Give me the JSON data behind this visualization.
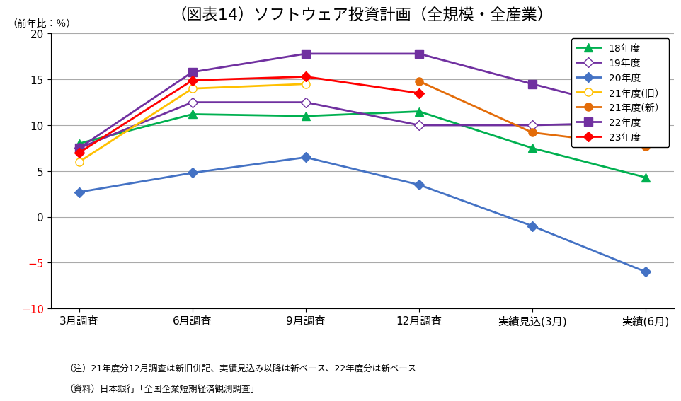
{
  "title": "（図表14）ソフトウェア投資計画（全規模・全産業）",
  "ylabel": "（前年比：％）",
  "x_labels": [
    "3月調査",
    "6月調査",
    "9月調査",
    "12月調査",
    "実績見込(3月)",
    "実績(6月)"
  ],
  "ylim": [
    -10,
    20
  ],
  "yticks": [
    -10,
    -5,
    0,
    5,
    10,
    15,
    20
  ],
  "series": [
    {
      "label": "18年度",
      "color": "#00B050",
      "marker": "^",
      "marker_face": "#00B050",
      "values": [
        8.0,
        11.2,
        11.0,
        11.5,
        7.5,
        4.3
      ]
    },
    {
      "label": "19年度",
      "color": "#7030A0",
      "marker": "D",
      "marker_face": "white",
      "values": [
        7.5,
        12.5,
        12.5,
        10.0,
        10.0,
        10.3
      ]
    },
    {
      "label": "20年度",
      "color": "#4472C4",
      "marker": "D",
      "marker_face": "#4472C4",
      "values": [
        2.7,
        4.8,
        6.5,
        3.5,
        -1.0,
        -6.0
      ]
    },
    {
      "label": "21年度(旧）",
      "color": "#FFC000",
      "marker": "o",
      "marker_face": "white",
      "values": [
        6.0,
        14.0,
        14.5,
        null,
        null,
        null
      ]
    },
    {
      "label": "21年度(新）",
      "color": "#E36C09",
      "marker": "o",
      "marker_face": "#E36C09",
      "values": [
        null,
        null,
        null,
        14.8,
        9.2,
        7.7
      ]
    },
    {
      "label": "22年度",
      "color": "#7030A0",
      "marker": "s",
      "marker_face": "#7030A0",
      "values": [
        7.5,
        15.8,
        17.8,
        17.8,
        14.5,
        11.3
      ]
    },
    {
      "label": "23年度",
      "color": "#FF0000",
      "marker": "D",
      "marker_face": "#FF0000",
      "values": [
        7.0,
        14.9,
        15.3,
        13.5,
        null,
        null
      ]
    }
  ],
  "note1": "（注）21年度分12月調査は新旧併記、実績見込み以降は新ベース、22年度分は新ベース",
  "note2": "（資料）日本銀行「全国企業短期経済観測調査」",
  "background_color": "#FFFFFF",
  "grid_color": "#AAAAAA"
}
